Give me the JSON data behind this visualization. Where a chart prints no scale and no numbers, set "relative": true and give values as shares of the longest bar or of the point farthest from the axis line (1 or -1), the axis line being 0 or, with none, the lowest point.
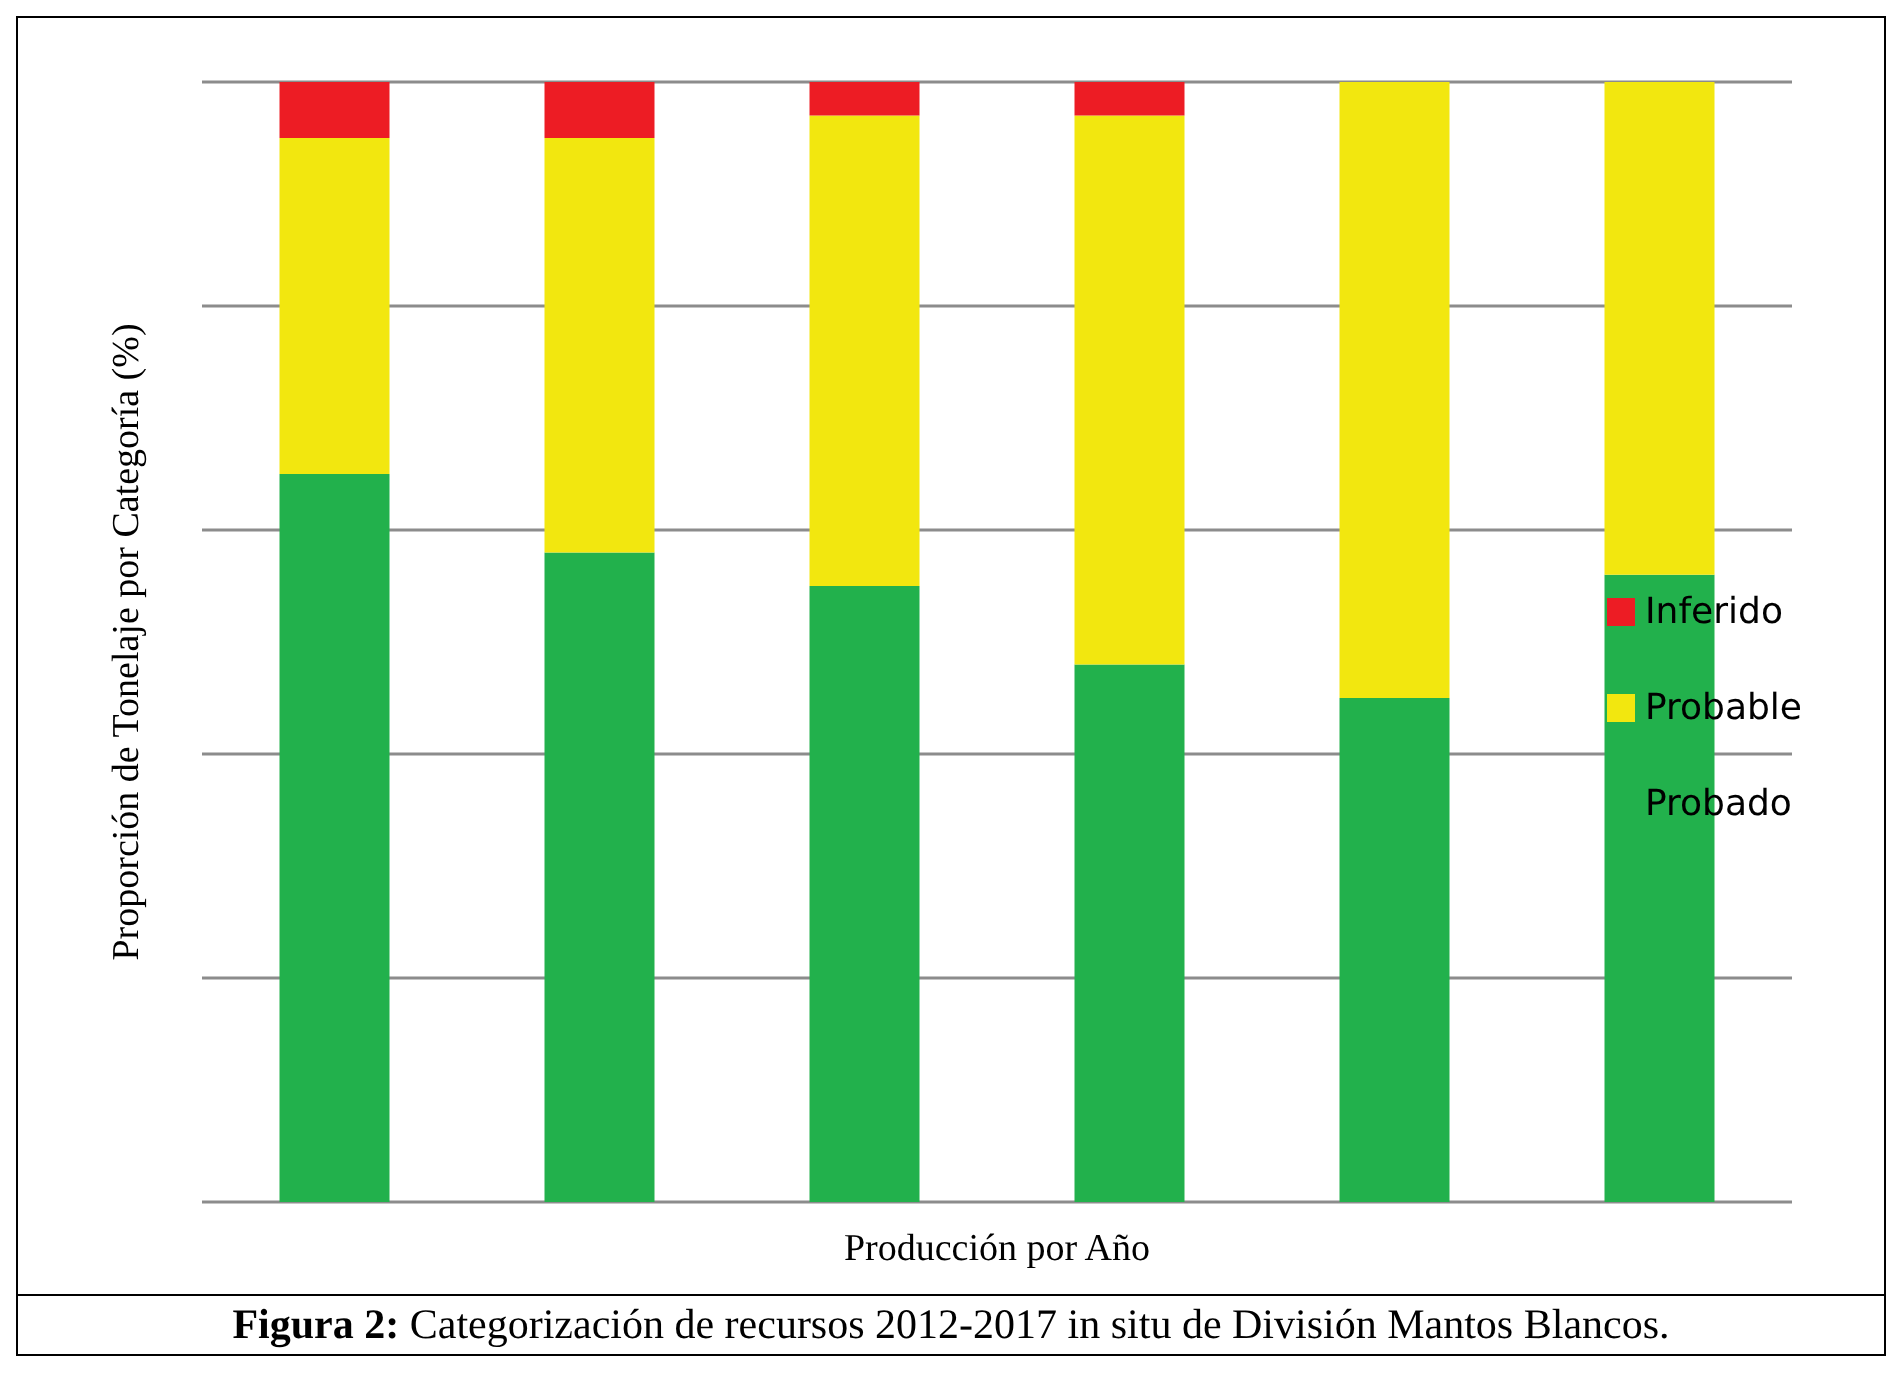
{
  "chart_data": {
    "type": "bar",
    "stacked": true,
    "relative": true,
    "ylabel": "Proporción de Tonelaje por Categoría (%)",
    "xlabel": "Producción por Año",
    "categories": [
      null,
      null,
      null,
      null,
      null,
      null
    ],
    "series": [
      {
        "name": "Probado",
        "color": "#22b14c",
        "values": [
          0.65,
          0.58,
          0.55,
          0.48,
          0.45,
          0.56
        ]
      },
      {
        "name": "Probable",
        "color": "#f2e70f",
        "values": [
          0.3,
          0.37,
          0.42,
          0.49,
          0.55,
          0.44
        ]
      },
      {
        "name": "Inferido",
        "color": "#ed1c24",
        "values": [
          0.05,
          0.05,
          0.03,
          0.03,
          0,
          0
        ]
      }
    ],
    "grid": "y",
    "legend": "right",
    "annotations": [
      "Figura 2: Categorización de recursos 2012-2017 in situ de División Mantos Blancos."
    ]
  }
}
